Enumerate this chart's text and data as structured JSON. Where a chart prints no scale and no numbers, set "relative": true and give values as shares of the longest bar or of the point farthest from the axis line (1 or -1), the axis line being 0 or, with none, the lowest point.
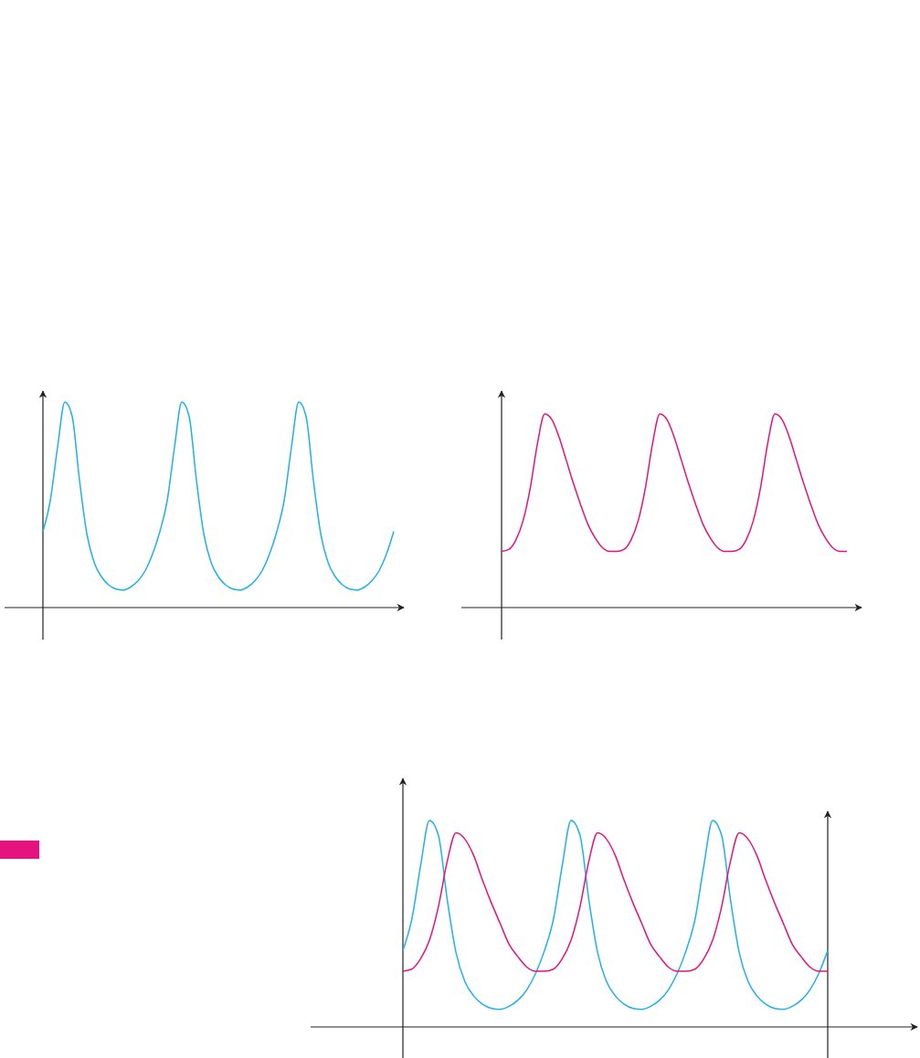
{
  "chart_data": [
    {
      "type": "line",
      "relative": true,
      "categories": [
        null,
        null,
        null,
        null,
        null,
        null,
        null,
        null,
        null,
        null,
        null,
        null,
        null,
        null,
        null,
        null,
        null,
        null,
        null,
        null,
        null,
        null,
        null,
        null,
        null,
        null,
        null,
        null,
        null,
        null,
        null,
        null,
        null,
        null,
        null,
        null,
        null,
        null,
        null,
        null,
        null,
        null,
        null,
        null,
        null,
        null,
        null,
        null,
        null
      ],
      "series": [
        {
          "color": "#1eb1ea",
          "values": [
            0.37,
            0.52,
            0.78,
            1.0,
            0.93,
            0.62,
            0.36,
            0.22,
            0.15,
            0.11,
            0.09,
            0.085,
            0.1,
            0.13,
            0.18,
            0.26,
            0.37,
            0.52,
            0.78,
            1.0,
            0.93,
            0.62,
            0.36,
            0.22,
            0.15,
            0.11,
            0.09,
            0.085,
            0.1,
            0.13,
            0.18,
            0.26,
            0.37,
            0.52,
            0.78,
            1.0,
            0.93,
            0.62,
            0.36,
            0.22,
            0.15,
            0.11,
            0.09,
            0.085,
            0.1,
            0.13,
            0.18,
            0.26,
            0.37
          ]
        }
      ]
    },
    {
      "type": "line",
      "relative": true,
      "categories": [
        null,
        null,
        null,
        null,
        null,
        null,
        null,
        null,
        null,
        null,
        null,
        null,
        null,
        null,
        null,
        null,
        null,
        null,
        null,
        null,
        null,
        null,
        null,
        null,
        null,
        null,
        null,
        null,
        null,
        null,
        null,
        null,
        null,
        null,
        null,
        null,
        null,
        null,
        null,
        null,
        null,
        null,
        null,
        null,
        null,
        null,
        null,
        null,
        null
      ],
      "series": [
        {
          "color": "#e5137f",
          "values": [
            0.29,
            0.3,
            0.35,
            0.45,
            0.62,
            0.85,
            1.0,
            0.97,
            0.88,
            0.76,
            0.64,
            0.53,
            0.43,
            0.36,
            0.31,
            0.29,
            0.29,
            0.3,
            0.35,
            0.45,
            0.62,
            0.85,
            1.0,
            0.97,
            0.88,
            0.76,
            0.64,
            0.53,
            0.43,
            0.36,
            0.31,
            0.29,
            0.29,
            0.3,
            0.35,
            0.45,
            0.62,
            0.85,
            1.0,
            0.97,
            0.88,
            0.76,
            0.64,
            0.53,
            0.43,
            0.36,
            0.31,
            0.29,
            0.29
          ]
        }
      ]
    },
    {
      "type": "line",
      "relative": true,
      "categories": [
        null,
        null,
        null,
        null,
        null,
        null,
        null,
        null,
        null,
        null,
        null,
        null,
        null,
        null,
        null,
        null,
        null,
        null,
        null,
        null,
        null,
        null,
        null,
        null,
        null,
        null,
        null,
        null,
        null,
        null,
        null,
        null,
        null,
        null,
        null,
        null,
        null,
        null,
        null,
        null,
        null,
        null,
        null,
        null,
        null,
        null,
        null,
        null,
        null
      ],
      "series": [
        {
          "color": "#1eb1ea",
          "values": [
            0.37,
            0.52,
            0.78,
            1.0,
            0.93,
            0.62,
            0.36,
            0.22,
            0.15,
            0.11,
            0.09,
            0.085,
            0.1,
            0.13,
            0.18,
            0.26,
            0.37,
            0.52,
            0.78,
            1.0,
            0.93,
            0.62,
            0.36,
            0.22,
            0.15,
            0.11,
            0.09,
            0.085,
            0.1,
            0.13,
            0.18,
            0.26,
            0.37,
            0.52,
            0.78,
            1.0,
            0.93,
            0.62,
            0.36,
            0.22,
            0.15,
            0.11,
            0.09,
            0.085,
            0.1,
            0.13,
            0.18,
            0.26,
            0.37
          ]
        },
        {
          "color": "#e5137f",
          "values": [
            0.27,
            0.28,
            0.33,
            0.42,
            0.58,
            0.8,
            0.94,
            0.91,
            0.83,
            0.71,
            0.6,
            0.5,
            0.4,
            0.34,
            0.29,
            0.27,
            0.27,
            0.28,
            0.33,
            0.42,
            0.58,
            0.8,
            0.94,
            0.91,
            0.83,
            0.71,
            0.6,
            0.5,
            0.4,
            0.34,
            0.29,
            0.27,
            0.27,
            0.28,
            0.33,
            0.42,
            0.58,
            0.8,
            0.94,
            0.91,
            0.83,
            0.71,
            0.6,
            0.5,
            0.4,
            0.34,
            0.29,
            0.27,
            0.27
          ]
        }
      ]
    }
  ]
}
